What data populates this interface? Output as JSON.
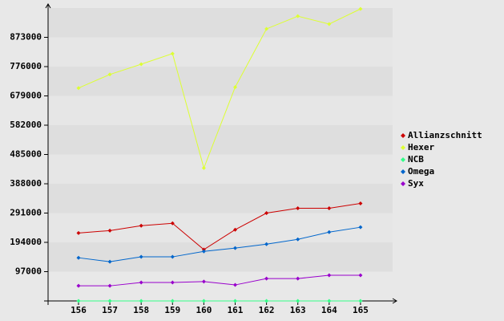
{
  "chart_data": {
    "type": "line",
    "categories": [
      "156",
      "157",
      "158",
      "159",
      "160",
      "161",
      "162",
      "163",
      "164",
      "165"
    ],
    "series": [
      {
        "name": "Allianzschnitt",
        "color": "#cc0000",
        "values": [
          225000,
          233000,
          249000,
          257000,
          170000,
          236000,
          291000,
          307000,
          307000,
          323000
        ]
      },
      {
        "name": "Hexer",
        "color": "#ddff33",
        "values": [
          705000,
          750000,
          784000,
          819000,
          440000,
          708000,
          901000,
          943000,
          917000,
          967000
        ]
      },
      {
        "name": "NCB",
        "color": "#33ff88",
        "values": [
          0,
          0,
          0,
          0,
          0,
          0,
          0,
          0,
          0,
          0
        ]
      },
      {
        "name": "Omega",
        "color": "#0066cc",
        "values": [
          143000,
          130000,
          146000,
          146000,
          164000,
          175000,
          188000,
          204000,
          228000,
          244000
        ]
      },
      {
        "name": "Syx",
        "color": "#9900cc",
        "values": [
          50000,
          50000,
          61000,
          61000,
          64000,
          53000,
          74000,
          74000,
          85000,
          85000
        ]
      }
    ],
    "ylim": [
      0,
      970000
    ],
    "yticks": [
      97000,
      194000,
      291000,
      388000,
      485000,
      582000,
      679000,
      776000,
      873000
    ],
    "grid": true,
    "legend": "right"
  }
}
